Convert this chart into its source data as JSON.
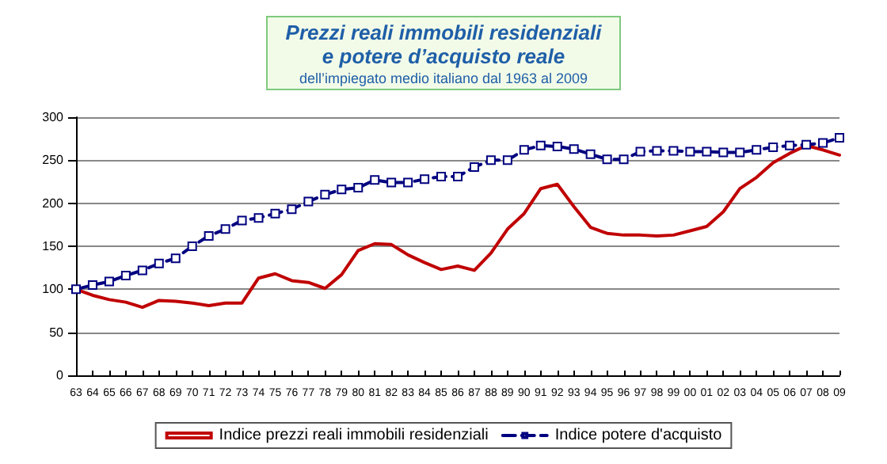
{
  "chart_data": {
    "type": "line",
    "title": "Prezzi reali immobili residenziali\ne potere d’acquisto reale",
    "subtitle": "dell’impiegato medio italiano dal 1963 al 2009",
    "categories": [
      "63",
      "64",
      "65",
      "66",
      "67",
      "68",
      "69",
      "70",
      "71",
      "72",
      "73",
      "74",
      "75",
      "76",
      "77",
      "78",
      "79",
      "80",
      "81",
      "82",
      "83",
      "84",
      "85",
      "86",
      "87",
      "88",
      "89",
      "90",
      "91",
      "92",
      "93",
      "94",
      "95",
      "96",
      "97",
      "98",
      "99",
      "00",
      "01",
      "02",
      "03",
      "04",
      "05",
      "06",
      "07",
      "08",
      "09"
    ],
    "series": [
      {
        "name": "Indice prezzi reali immobili residenziali",
        "color": "#c00000",
        "marker": "none",
        "line_style": "solid",
        "values": [
          100,
          93,
          88,
          85,
          79,
          87,
          86,
          84,
          81,
          84,
          84,
          113,
          118,
          110,
          108,
          101,
          117,
          145,
          153,
          152,
          140,
          131,
          123,
          127,
          122,
          142,
          170,
          188,
          217,
          222,
          196,
          172,
          165,
          163,
          163,
          162,
          163,
          168,
          173,
          190,
          217,
          230,
          247,
          258,
          267,
          262,
          256
        ]
      },
      {
        "name": "Indice potere d'acquisto",
        "color": "#000080",
        "marker": "square",
        "line_style": "dashed",
        "values": [
          100,
          105,
          109,
          116,
          122,
          130,
          136,
          150,
          162,
          170,
          180,
          183,
          188,
          193,
          202,
          210,
          216,
          218,
          227,
          224,
          224,
          228,
          231,
          231,
          242,
          250,
          250,
          262,
          267,
          266,
          263,
          257,
          251,
          251,
          260,
          261,
          261,
          260,
          260,
          259,
          259,
          262,
          265,
          267,
          268,
          270,
          276
        ]
      }
    ],
    "ylim": [
      0,
      300
    ],
    "yticks": [
      0,
      50,
      100,
      150,
      200,
      250,
      300
    ],
    "grid": "y",
    "legend": "bottom"
  }
}
